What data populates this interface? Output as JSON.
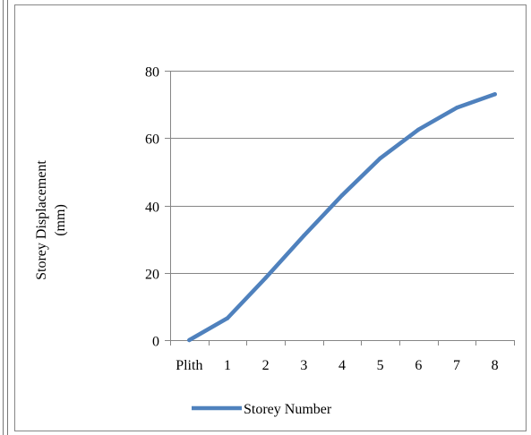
{
  "colors": {
    "series": "#4f81bd",
    "gridline": "#868686",
    "axis": "#868686",
    "frame": "#777777"
  },
  "chart_data": {
    "type": "line",
    "categories": [
      "Plith",
      "1",
      "2",
      "3",
      "4",
      "5",
      "6",
      "7",
      "8"
    ],
    "series": [
      {
        "name": "Storey Number",
        "values": [
          0,
          6.5,
          18.5,
          31,
          43,
          54,
          62.5,
          69,
          73
        ]
      }
    ],
    "title": "",
    "xlabel": "",
    "ylabel": "Storey Displacement (mm)",
    "ylabel_lines": [
      "Storey Displacement",
      "(mm)"
    ],
    "ylim": [
      0,
      80
    ],
    "yticks": [
      0,
      20,
      40,
      60,
      80
    ],
    "grid": true,
    "legend_position": "bottom"
  }
}
